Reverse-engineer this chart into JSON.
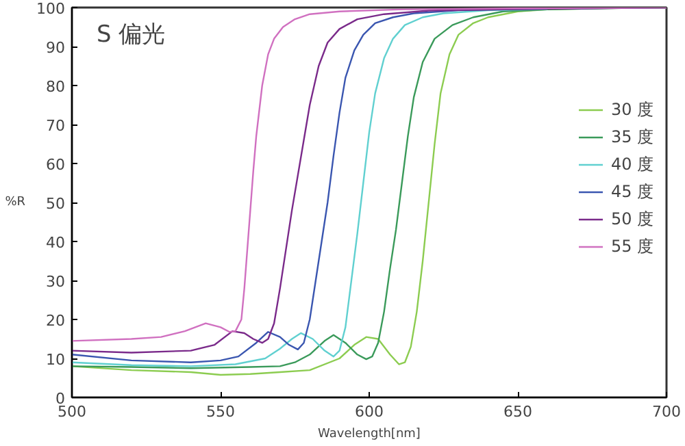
{
  "chart_data": {
    "type": "line",
    "xlabel": "Wavelength[nm]",
    "ylabel": "%R",
    "annotations": [
      "S 偏光"
    ],
    "xlim": [
      500,
      700
    ],
    "ylim": [
      0,
      100
    ],
    "xticks": [
      500,
      550,
      600,
      650,
      700
    ],
    "yticks": [
      0,
      10,
      20,
      30,
      40,
      50,
      60,
      70,
      80,
      90,
      100
    ],
    "grid": false,
    "legend": "right",
    "marker": "none",
    "line_style": "solid",
    "series": [
      {
        "name": "30 度",
        "color": "#8ccc50",
        "x": [
          500,
          520,
          540,
          550,
          560,
          570,
          580,
          590,
          595,
          599,
          603,
          607,
          610,
          612,
          614,
          616,
          618,
          620,
          622,
          624,
          627,
          630,
          635,
          640,
          650,
          660,
          680,
          700
        ],
        "values": [
          8,
          7,
          6.5,
          5.8,
          6,
          6.5,
          7,
          10,
          13.5,
          15.5,
          15,
          11,
          8.5,
          9,
          13,
          22,
          35,
          50,
          65,
          78,
          88,
          93,
          96,
          97.5,
          99,
          99.5,
          99.8,
          100
        ]
      },
      {
        "name": "35 度",
        "color": "#3a9a5a",
        "x": [
          500,
          520,
          540,
          560,
          570,
          575,
          580,
          585,
          588,
          592,
          596,
          599,
          601,
          603,
          605,
          607,
          609,
          611,
          613,
          615,
          618,
          622,
          628,
          635,
          645,
          660,
          680,
          700
        ],
        "values": [
          8,
          7.8,
          7.5,
          7.8,
          8,
          9,
          11,
          14.5,
          16,
          14,
          11,
          9.8,
          10.5,
          14,
          22,
          33,
          43,
          55,
          67,
          77,
          86,
          92,
          95.5,
          97.5,
          99,
          99.5,
          99.8,
          100
        ]
      },
      {
        "name": "40 度",
        "color": "#60d0d0",
        "x": [
          500,
          520,
          540,
          555,
          565,
          570,
          574,
          577,
          581,
          585,
          588,
          590,
          592,
          594,
          596,
          598,
          600,
          602,
          605,
          608,
          612,
          618,
          625,
          640,
          660
        ],
        "values": [
          9,
          8.3,
          8,
          8.5,
          10,
          12.5,
          15,
          16.5,
          15,
          12,
          10.5,
          12,
          18,
          30,
          42,
          55,
          68,
          78,
          87,
          92,
          95.5,
          97.5,
          98.5,
          99.3,
          99.6
        ]
      },
      {
        "name": "45 度",
        "color": "#3a56b0",
        "x": [
          500,
          520,
          540,
          550,
          556,
          562,
          566,
          570,
          573,
          576,
          578,
          580,
          582,
          584,
          586,
          588,
          590,
          592,
          595,
          598,
          602,
          608,
          615,
          630,
          660,
          700
        ],
        "values": [
          11,
          9.5,
          9,
          9.5,
          10.5,
          14,
          16.8,
          15.5,
          13.5,
          12.3,
          14,
          20,
          30,
          40,
          50,
          62,
          73,
          82,
          89,
          93,
          96,
          97.5,
          98.5,
          99.3,
          99.7,
          100
        ]
      },
      {
        "name": "50 度",
        "color": "#7a2a8a",
        "x": [
          500,
          520,
          540,
          548,
          554,
          558,
          561,
          564,
          566,
          568,
          570,
          572,
          574,
          576,
          578,
          580,
          583,
          586,
          590,
          596,
          605,
          620,
          650,
          700
        ],
        "values": [
          12,
          11.5,
          12,
          13.5,
          17,
          16.5,
          15,
          14,
          15,
          19,
          28,
          38,
          48,
          57,
          66,
          75,
          85,
          91,
          94.5,
          97,
          98.3,
          99.2,
          99.6,
          100
        ]
      },
      {
        "name": "55 度",
        "color": "#d070c0",
        "x": [
          500,
          520,
          530,
          538,
          545,
          550,
          553,
          555,
          557,
          558,
          559,
          560,
          561,
          562,
          564,
          566,
          568,
          571,
          575,
          580,
          590,
          610,
          650,
          700
        ],
        "values": [
          14.5,
          15,
          15.5,
          17,
          19,
          18,
          16.8,
          17,
          20,
          28,
          38,
          48,
          58,
          67,
          80,
          88,
          92,
          95,
          97,
          98.3,
          99,
          99.5,
          99.8,
          100
        ]
      }
    ]
  }
}
